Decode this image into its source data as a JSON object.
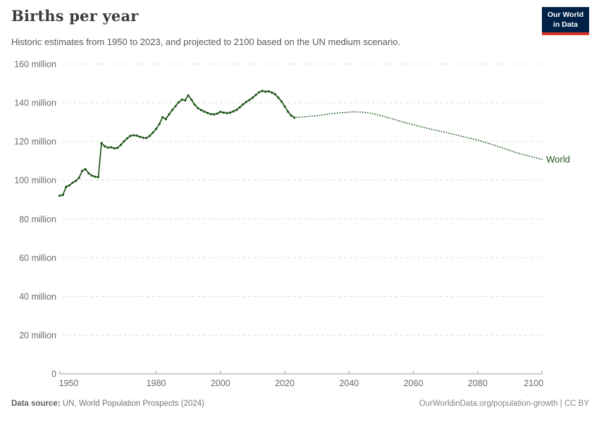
{
  "header": {
    "title": "Births per year",
    "subtitle": "Historic estimates from 1950 to 2023, and projected to 2100 based on the UN medium scenario.",
    "logo": {
      "line1": "Our World",
      "line2": "in Data"
    }
  },
  "colors": {
    "series_green": "#1d5417",
    "gridline": "#dedede",
    "axis": "#a3a3a3",
    "tick_text": "#6b6b6b",
    "logo_bg": "#002147",
    "logo_accent": "#dc3226"
  },
  "chart_data": {
    "type": "line",
    "title": "Births per year",
    "xlabel": "",
    "ylabel": "",
    "unit": "million",
    "xlim": [
      1950,
      2100
    ],
    "ylim": [
      0,
      160
    ],
    "grid": "dashed horizontal gridlines",
    "legend_position": "end-of-line label",
    "x_ticks": [
      1950,
      1980,
      2000,
      2020,
      2040,
      2060,
      2080,
      2100
    ],
    "y_ticks": [
      0,
      20,
      40,
      60,
      80,
      100,
      120,
      140,
      160
    ],
    "y_tick_labels": [
      "0",
      "20 million",
      "40 million",
      "60 million",
      "80 million",
      "100 million",
      "120 million",
      "140 million",
      "160 million"
    ],
    "end_label": "World",
    "series": [
      {
        "name": "World — historic estimates (1950–2023)",
        "style": "solid",
        "markers": true,
        "points": [
          [
            1950,
            92.0
          ],
          [
            1951,
            92.4
          ],
          [
            1952,
            96.6
          ],
          [
            1953,
            97.3
          ],
          [
            1954,
            98.7
          ],
          [
            1955,
            99.6
          ],
          [
            1956,
            101.2
          ],
          [
            1957,
            104.8
          ],
          [
            1958,
            105.7
          ],
          [
            1959,
            103.6
          ],
          [
            1960,
            102.4
          ],
          [
            1961,
            101.8
          ],
          [
            1962,
            101.6
          ],
          [
            1963,
            119.2
          ],
          [
            1964,
            117.5
          ],
          [
            1965,
            116.8
          ],
          [
            1966,
            117.0
          ],
          [
            1967,
            116.4
          ],
          [
            1968,
            116.7
          ],
          [
            1969,
            118.2
          ],
          [
            1970,
            120.1
          ],
          [
            1971,
            121.6
          ],
          [
            1972,
            122.9
          ],
          [
            1973,
            123.2
          ],
          [
            1974,
            123.0
          ],
          [
            1975,
            122.4
          ],
          [
            1976,
            121.9
          ],
          [
            1977,
            121.8
          ],
          [
            1978,
            122.9
          ],
          [
            1979,
            124.6
          ],
          [
            1980,
            126.5
          ],
          [
            1981,
            129.0
          ],
          [
            1982,
            132.5
          ],
          [
            1983,
            131.5
          ],
          [
            1984,
            134.0
          ],
          [
            1985,
            136.2
          ],
          [
            1986,
            138.2
          ],
          [
            1987,
            140.2
          ],
          [
            1988,
            141.6
          ],
          [
            1989,
            141.2
          ],
          [
            1990,
            143.8
          ],
          [
            1991,
            141.5
          ],
          [
            1992,
            139.0
          ],
          [
            1993,
            137.2
          ],
          [
            1994,
            136.2
          ],
          [
            1995,
            135.4
          ],
          [
            1996,
            134.7
          ],
          [
            1997,
            134.1
          ],
          [
            1998,
            134.0
          ],
          [
            1999,
            134.4
          ],
          [
            2000,
            135.3
          ],
          [
            2001,
            134.9
          ],
          [
            2002,
            134.6
          ],
          [
            2003,
            134.9
          ],
          [
            2004,
            135.5
          ],
          [
            2005,
            136.3
          ],
          [
            2006,
            137.6
          ],
          [
            2007,
            139.1
          ],
          [
            2008,
            140.4
          ],
          [
            2009,
            141.4
          ],
          [
            2010,
            142.6
          ],
          [
            2011,
            144.0
          ],
          [
            2012,
            145.4
          ],
          [
            2013,
            146.1
          ],
          [
            2014,
            145.7
          ],
          [
            2015,
            145.9
          ],
          [
            2016,
            145.2
          ],
          [
            2017,
            144.4
          ],
          [
            2018,
            142.6
          ],
          [
            2019,
            140.6
          ],
          [
            2020,
            138.1
          ],
          [
            2021,
            135.4
          ],
          [
            2022,
            133.4
          ],
          [
            2023,
            132.3
          ]
        ]
      },
      {
        "name": "World — UN medium scenario projection (2023–2100)",
        "style": "dotted",
        "markers": false,
        "points": [
          [
            2023,
            132.3
          ],
          [
            2026,
            132.7
          ],
          [
            2030,
            133.3
          ],
          [
            2034,
            134.2
          ],
          [
            2038,
            134.9
          ],
          [
            2041,
            135.3
          ],
          [
            2044,
            135.2
          ],
          [
            2047,
            134.5
          ],
          [
            2050,
            133.3
          ],
          [
            2053,
            131.9
          ],
          [
            2056,
            130.4
          ],
          [
            2060,
            128.6
          ],
          [
            2064,
            126.9
          ],
          [
            2068,
            125.4
          ],
          [
            2072,
            123.9
          ],
          [
            2076,
            122.3
          ],
          [
            2080,
            120.7
          ],
          [
            2084,
            118.7
          ],
          [
            2088,
            116.5
          ],
          [
            2092,
            114.2
          ],
          [
            2096,
            112.4
          ],
          [
            2100,
            110.8
          ]
        ]
      }
    ]
  },
  "footer": {
    "source_label": "Data source:",
    "source_text": " UN, World Population Prospects (2024)",
    "credit": "OurWorldinData.org/population-growth | CC BY"
  }
}
